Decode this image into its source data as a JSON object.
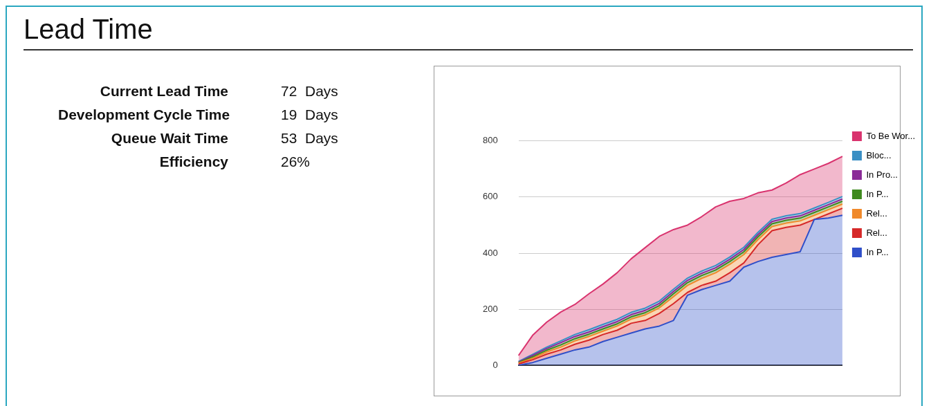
{
  "chart_data": [
    {
      "type": "other",
      "title": "Lead Time",
      "annotations": [
        "Current Lead Time",
        "72  Days",
        "Development Cycle Time",
        "19  Days",
        "Queue Wait Time",
        "53  Days",
        "Efficiency",
        "26%"
      ]
    },
    {
      "type": "area",
      "stacked": true,
      "categories": [
        null,
        null,
        null,
        null,
        null,
        null,
        null,
        null,
        null,
        null,
        null,
        null,
        null,
        null,
        null,
        null,
        null,
        null,
        null,
        null,
        null,
        null,
        null,
        null
      ],
      "ylim": [
        0,
        800
      ],
      "yticks": [
        0,
        200,
        400,
        600,
        800
      ],
      "grid": "y",
      "legend": "right",
      "tick_labels": "y",
      "marker": "none",
      "line_style": "solid",
      "series": [
        {
          "name": "In P...",
          "color": "#2f4fc9",
          "values": [
            0,
            10,
            25,
            40,
            55,
            65,
            85,
            100,
            115,
            130,
            140,
            160,
            250,
            270,
            285,
            300,
            350,
            370,
            385,
            395,
            405,
            520,
            525,
            535
          ]
        },
        {
          "name": "Rel...",
          "color": "#d62828",
          "values": [
            5,
            10,
            15,
            15,
            20,
            25,
            25,
            25,
            35,
            30,
            45,
            60,
            10,
            15,
            15,
            30,
            15,
            60,
            95,
            97,
            95,
            0,
            15,
            25
          ]
        },
        {
          "name": "Rel...",
          "color": "#f0892a",
          "values": [
            3,
            5,
            8,
            10,
            12,
            13,
            12,
            15,
            15,
            20,
            20,
            25,
            25,
            25,
            30,
            30,
            30,
            18,
            15,
            15,
            15,
            15,
            15,
            15
          ]
        },
        {
          "name": "In P...",
          "color": "#3f8a1e",
          "values": [
            2,
            5,
            6,
            8,
            8,
            8,
            8,
            8,
            8,
            8,
            8,
            10,
            10,
            10,
            10,
            10,
            10,
            10,
            10,
            10,
            10,
            10,
            10,
            10
          ]
        },
        {
          "name": "In Pro...",
          "color": "#8a2a97",
          "values": [
            2,
            5,
            6,
            8,
            8,
            8,
            8,
            8,
            8,
            8,
            8,
            8,
            8,
            8,
            8,
            8,
            8,
            8,
            8,
            8,
            8,
            8,
            8,
            8
          ]
        },
        {
          "name": "Bloc...",
          "color": "#3a8fc4",
          "values": [
            2,
            4,
            5,
            6,
            7,
            8,
            8,
            8,
            8,
            8,
            8,
            8,
            8,
            8,
            8,
            8,
            8,
            8,
            8,
            8,
            8,
            8,
            8,
            9
          ]
        },
        {
          "name": "To Be Wor...",
          "color": "#d9336e",
          "values": [
            21,
            68,
            89,
            103,
            107,
            128,
            144,
            166,
            191,
            216,
            231,
            213,
            189,
            194,
            209,
            199,
            174,
            141,
            104,
            117,
            139,
            139,
            139,
            143
          ]
        }
      ]
    }
  ]
}
